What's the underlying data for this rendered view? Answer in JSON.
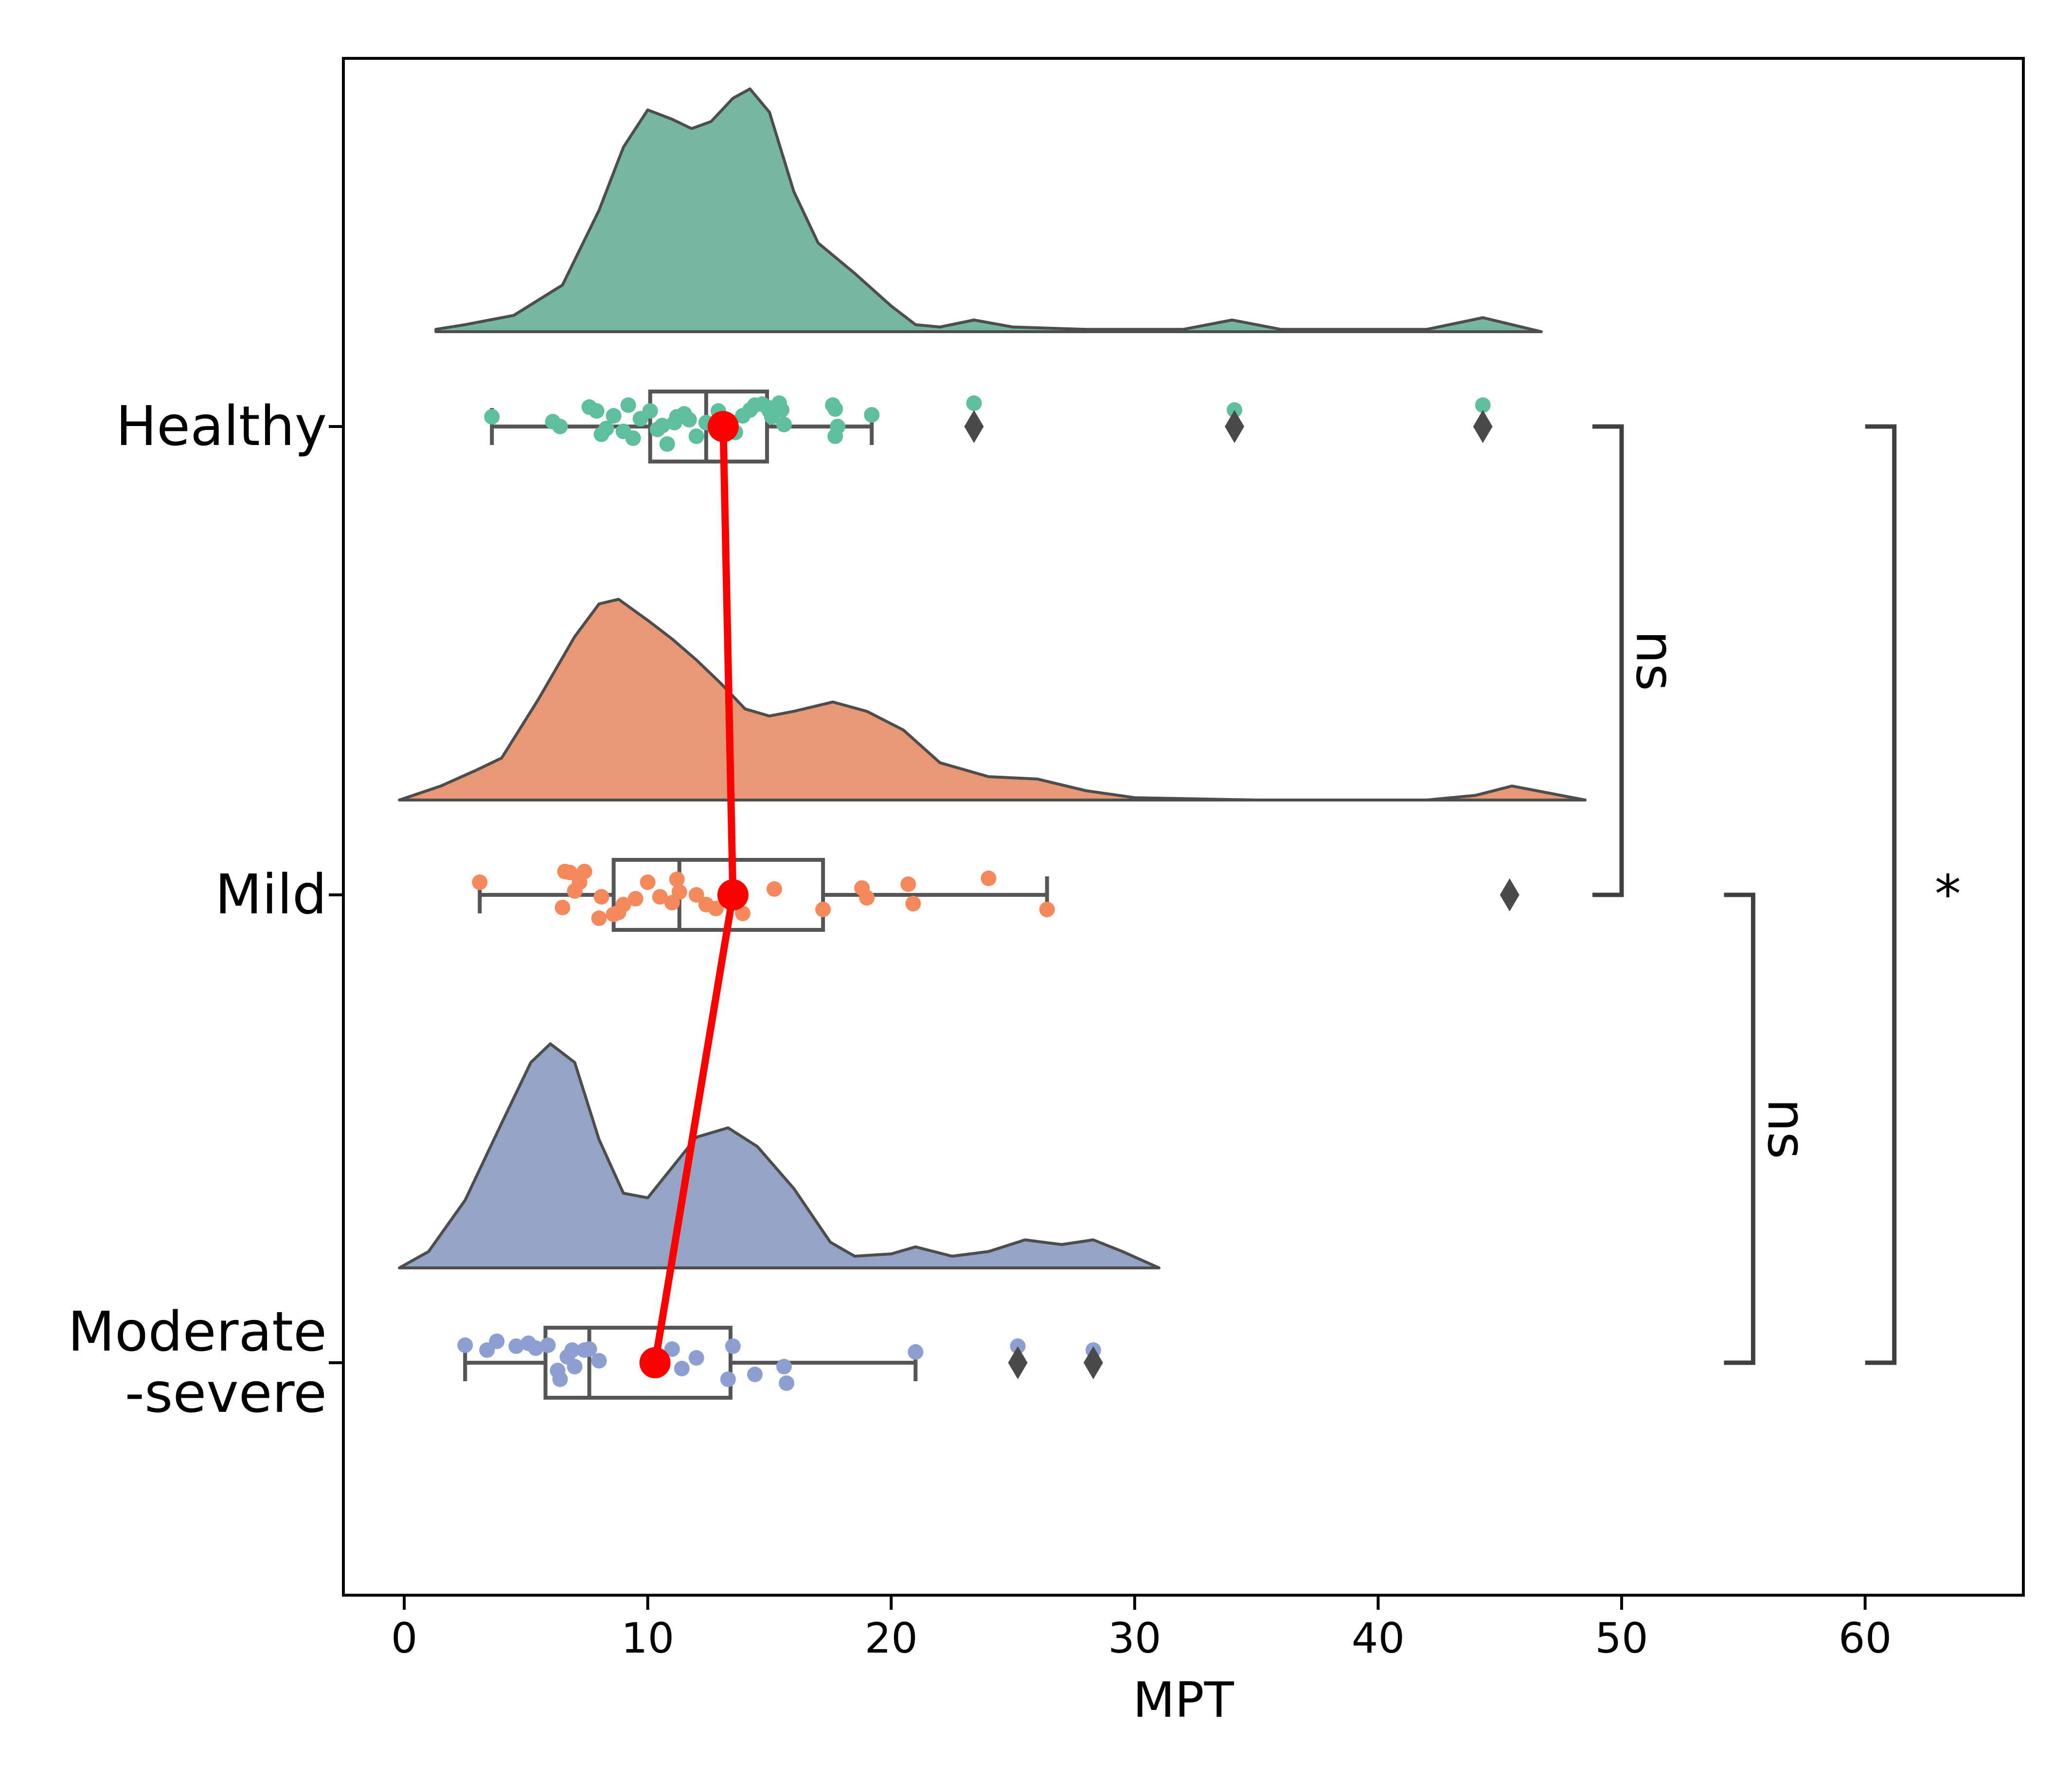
{
  "chart_data": {
    "type": "raincloud",
    "title": "",
    "xlabel": "MPT",
    "ylabel": "",
    "xlim": [
      -2.5,
      66.5
    ],
    "xticks": [
      0,
      10,
      20,
      30,
      40,
      50,
      60
    ],
    "xtick_labels": [
      "0",
      "10",
      "20",
      "30",
      "40",
      "50",
      "60"
    ],
    "grid": false,
    "legend": "none",
    "groups": [
      {
        "label_lines": [
          "Healthy"
        ],
        "box": {
          "whisker_low": 3.6,
          "q1": 10.1,
          "median": 12.4,
          "q3": 14.9,
          "whisker_high": 19.2
        },
        "outliers": [
          23.4,
          34.1,
          44.3
        ],
        "mean": 13.1,
        "density": [
          [
            1.3,
            0.01
          ],
          [
            2.5,
            0.03
          ],
          [
            4.5,
            0.07
          ],
          [
            6.5,
            0.2
          ],
          [
            8.0,
            0.52
          ],
          [
            9.0,
            0.79
          ],
          [
            10.0,
            0.95
          ],
          [
            11.0,
            0.91
          ],
          [
            11.8,
            0.87
          ],
          [
            12.6,
            0.9
          ],
          [
            13.5,
            1.0
          ],
          [
            14.2,
            1.04
          ],
          [
            15.0,
            0.94
          ],
          [
            16.0,
            0.6
          ],
          [
            17.0,
            0.38
          ],
          [
            18.5,
            0.25
          ],
          [
            20.0,
            0.11
          ],
          [
            21.0,
            0.03
          ],
          [
            22.0,
            0.02
          ],
          [
            23.4,
            0.05
          ],
          [
            25.0,
            0.02
          ],
          [
            28.0,
            0.01
          ],
          [
            32.0,
            0.01
          ],
          [
            34.0,
            0.05
          ],
          [
            36.0,
            0.01
          ],
          [
            42.0,
            0.01
          ],
          [
            44.3,
            0.06
          ],
          [
            46.7,
            0.0
          ]
        ],
        "points": [
          [
            3.6,
            0.1
          ],
          [
            6.4,
            0.0
          ],
          [
            6.1,
            0.05
          ],
          [
            7.6,
            0.2
          ],
          [
            7.9,
            0.16
          ],
          [
            8.1,
            -0.08
          ],
          [
            8.3,
            -0.02
          ],
          [
            8.6,
            0.11
          ],
          [
            9.0,
            -0.05
          ],
          [
            9.2,
            0.22
          ],
          [
            9.4,
            -0.12
          ],
          [
            9.7,
            0.08
          ],
          [
            10.1,
            0.16
          ],
          [
            10.4,
            -0.03
          ],
          [
            10.6,
            0.01
          ],
          [
            10.8,
            -0.18
          ],
          [
            11.1,
            0.04
          ],
          [
            11.2,
            0.1
          ],
          [
            11.5,
            0.13
          ],
          [
            11.7,
            0.07
          ],
          [
            12.0,
            -0.1
          ],
          [
            12.4,
            0.04
          ],
          [
            12.9,
            0.16
          ],
          [
            13.2,
            -0.04
          ],
          [
            13.4,
            0.05
          ],
          [
            13.6,
            -0.06
          ],
          [
            13.9,
            0.11
          ],
          [
            14.2,
            0.17
          ],
          [
            14.4,
            0.22
          ],
          [
            14.7,
            0.23
          ],
          [
            14.9,
            0.2
          ],
          [
            15.0,
            0.16
          ],
          [
            15.1,
            0.1
          ],
          [
            15.4,
            0.24
          ],
          [
            15.5,
            0.17
          ],
          [
            15.6,
            0.02
          ],
          [
            17.6,
            0.22
          ],
          [
            17.7,
            0.18
          ],
          [
            17.8,
            0.0
          ],
          [
            17.7,
            -0.1
          ],
          [
            19.2,
            0.12
          ],
          [
            23.4,
            0.24
          ],
          [
            34.1,
            0.17
          ],
          [
            44.3,
            0.22
          ]
        ]
      },
      {
        "label_lines": [
          "Mild"
        ],
        "box": {
          "whisker_low": 3.1,
          "q1": 8.6,
          "median": 11.3,
          "q3": 17.2,
          "whisker_high": 26.4
        },
        "outliers": [
          45.4
        ],
        "mean": 13.5,
        "density": [
          [
            -0.2,
            0.0
          ],
          [
            1.5,
            0.06
          ],
          [
            3.0,
            0.13
          ],
          [
            4.0,
            0.18
          ],
          [
            5.5,
            0.43
          ],
          [
            7.0,
            0.7
          ],
          [
            8.0,
            0.84
          ],
          [
            8.8,
            0.86
          ],
          [
            10.0,
            0.77
          ],
          [
            11.0,
            0.69
          ],
          [
            12.0,
            0.6
          ],
          [
            13.0,
            0.5
          ],
          [
            14.0,
            0.39
          ],
          [
            15.0,
            0.36
          ],
          [
            16.0,
            0.38
          ],
          [
            17.6,
            0.42
          ],
          [
            19.0,
            0.38
          ],
          [
            20.5,
            0.3
          ],
          [
            22.0,
            0.16
          ],
          [
            24.0,
            0.1
          ],
          [
            26.0,
            0.09
          ],
          [
            28.0,
            0.04
          ],
          [
            30.0,
            0.01
          ],
          [
            35.0,
            0.0
          ],
          [
            42.0,
            0.0
          ],
          [
            44.0,
            0.02
          ],
          [
            45.5,
            0.06
          ],
          [
            47.0,
            0.03
          ],
          [
            48.5,
            0.0
          ]
        ],
        "points": [
          [
            3.1,
            0.13
          ],
          [
            6.6,
            0.24
          ],
          [
            6.8,
            0.23
          ],
          [
            7.0,
            0.04
          ],
          [
            7.2,
            0.13
          ],
          [
            6.5,
            -0.13
          ],
          [
            7.4,
            0.24
          ],
          [
            8.0,
            -0.24
          ],
          [
            8.1,
            -0.02
          ],
          [
            8.6,
            -0.2
          ],
          [
            8.8,
            -0.18
          ],
          [
            9.0,
            -0.1
          ],
          [
            9.5,
            -0.04
          ],
          [
            10.0,
            0.13
          ],
          [
            10.5,
            -0.02
          ],
          [
            11.0,
            -0.08
          ],
          [
            11.2,
            0.16
          ],
          [
            11.3,
            0.03
          ],
          [
            12.0,
            0.0
          ],
          [
            12.4,
            -0.1
          ],
          [
            12.8,
            -0.14
          ],
          [
            13.5,
            0.08
          ],
          [
            13.9,
            -0.19
          ],
          [
            15.2,
            0.06
          ],
          [
            17.2,
            -0.15
          ],
          [
            18.8,
            0.07
          ],
          [
            19.0,
            -0.03
          ],
          [
            20.7,
            0.11
          ],
          [
            20.9,
            -0.09
          ],
          [
            24.0,
            0.17
          ],
          [
            26.4,
            -0.15
          ],
          [
            45.4,
            0.0
          ]
        ]
      },
      {
        "label_lines": [
          "Moderate",
          "-severe"
        ],
        "box": {
          "whisker_low": 2.5,
          "q1": 5.8,
          "median": 7.6,
          "q3": 13.4,
          "whisker_high": 21.0
        },
        "outliers": [
          25.2,
          28.3
        ],
        "mean": 10.3,
        "density": [
          [
            -0.2,
            0.0
          ],
          [
            1.0,
            0.07
          ],
          [
            2.5,
            0.29
          ],
          [
            4.0,
            0.62
          ],
          [
            5.2,
            0.88
          ],
          [
            6.0,
            0.96
          ],
          [
            7.0,
            0.88
          ],
          [
            8.0,
            0.55
          ],
          [
            9.0,
            0.32
          ],
          [
            10.0,
            0.3
          ],
          [
            11.0,
            0.43
          ],
          [
            12.0,
            0.56
          ],
          [
            13.3,
            0.6
          ],
          [
            14.5,
            0.52
          ],
          [
            16.0,
            0.34
          ],
          [
            17.5,
            0.11
          ],
          [
            18.5,
            0.05
          ],
          [
            20.0,
            0.06
          ],
          [
            21.0,
            0.09
          ],
          [
            22.5,
            0.05
          ],
          [
            24.0,
            0.07
          ],
          [
            25.5,
            0.12
          ],
          [
            27.0,
            0.1
          ],
          [
            28.3,
            0.12
          ],
          [
            29.5,
            0.07
          ],
          [
            31.0,
            0.0
          ]
        ],
        "points": [
          [
            2.5,
            0.18
          ],
          [
            3.4,
            0.13
          ],
          [
            3.8,
            0.22
          ],
          [
            4.6,
            0.17
          ],
          [
            5.1,
            0.2
          ],
          [
            5.4,
            0.15
          ],
          [
            5.9,
            0.18
          ],
          [
            6.3,
            -0.08
          ],
          [
            6.4,
            -0.17
          ],
          [
            6.7,
            0.06
          ],
          [
            6.9,
            0.13
          ],
          [
            7.0,
            -0.04
          ],
          [
            7.4,
            0.13
          ],
          [
            7.6,
            0.14
          ],
          [
            8.0,
            0.02
          ],
          [
            11.0,
            0.14
          ],
          [
            11.4,
            -0.06
          ],
          [
            12.0,
            0.05
          ],
          [
            13.3,
            -0.17
          ],
          [
            13.5,
            0.17
          ],
          [
            14.4,
            -0.12
          ],
          [
            15.6,
            -0.04
          ],
          [
            15.7,
            -0.21
          ],
          [
            21.0,
            0.11
          ],
          [
            25.2,
            0.17
          ],
          [
            28.3,
            0.13
          ]
        ]
      }
    ],
    "significance": [
      {
        "from_group": 0,
        "to_group": 1,
        "label": "ns",
        "rotated": true
      },
      {
        "from_group": 1,
        "to_group": 2,
        "label": "ns",
        "rotated": true
      },
      {
        "from_group": 0,
        "to_group": 2,
        "label": "*",
        "rotated": false
      }
    ],
    "colors": {
      "fills": [
        "#76b6a2",
        "#e89875",
        "#95a4c4"
      ],
      "points": [
        "#5ebe9d",
        "#f48a5c",
        "#8d9ed0"
      ],
      "box_line": "#555555",
      "mean_line": "#ff0000",
      "axis": "#000000",
      "bracket": "#404040"
    }
  }
}
